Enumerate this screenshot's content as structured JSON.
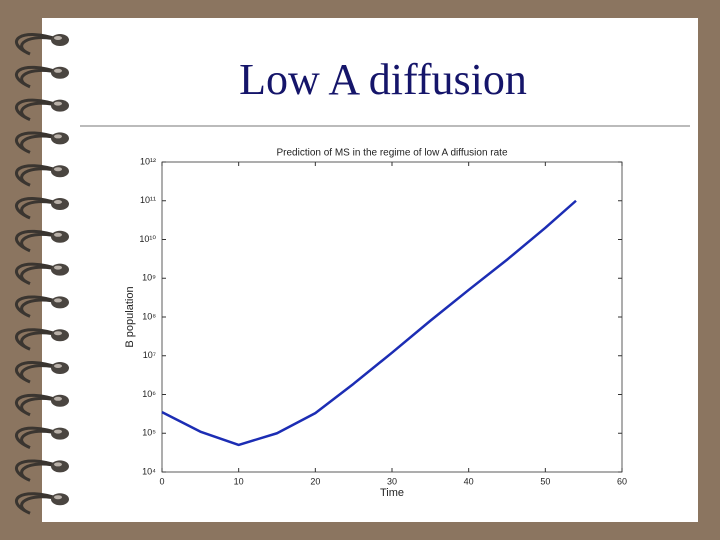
{
  "slide_title": "Low A diffusion",
  "chart_data": {
    "type": "line",
    "title": "Prediction of MS in the regime of low A diffusion rate",
    "x_label": "Time",
    "y_label": "B population",
    "x": [
      0,
      5,
      10,
      15,
      20,
      25,
      30,
      35,
      40,
      45,
      50,
      54
    ],
    "series": [
      {
        "name": "B population",
        "color": "#1c2db4",
        "values": [
          350000,
          110000,
          50000,
          100000,
          330000,
          1900000,
          12000000,
          80000000,
          500000000,
          3000000000,
          20000000000,
          100000000000
        ]
      }
    ],
    "xlim": [
      0,
      60
    ],
    "xticks": [
      0,
      10,
      20,
      30,
      40,
      50,
      60
    ],
    "ylim": [
      10000,
      1000000000000
    ],
    "yscale": "log",
    "yticks": [
      {
        "value": 10000,
        "label": "10⁴"
      },
      {
        "value": 100000,
        "label": "10⁵"
      },
      {
        "value": 1000000,
        "label": "10⁶"
      },
      {
        "value": 10000000,
        "label": "10⁷"
      },
      {
        "value": 100000000,
        "label": "10⁸"
      },
      {
        "value": 1000000000,
        "label": "10⁹"
      },
      {
        "value": 10000000000,
        "label": "10¹⁰"
      },
      {
        "value": 100000000000,
        "label": "10¹¹"
      },
      {
        "value": 1000000000000,
        "label": "10¹²"
      }
    ],
    "grid": false
  }
}
